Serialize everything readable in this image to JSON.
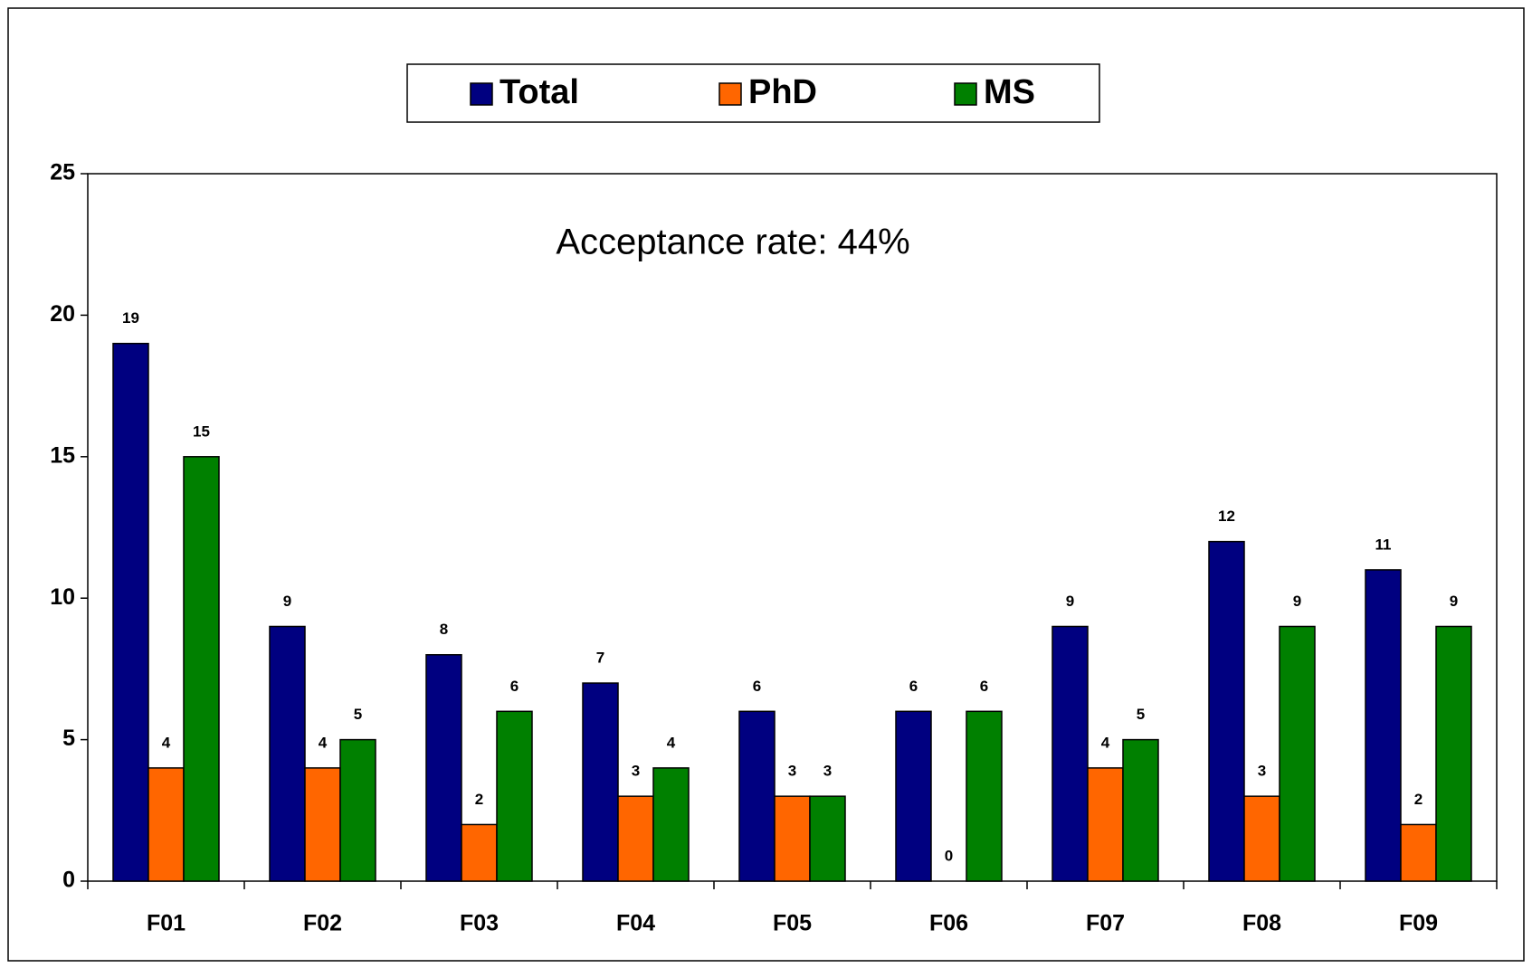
{
  "chart_data": {
    "type": "bar",
    "categories": [
      "F01",
      "F02",
      "F03",
      "F04",
      "F05",
      "F06",
      "F07",
      "F08",
      "F09"
    ],
    "series": [
      {
        "name": "Total",
        "color": "#000080",
        "values": [
          19,
          9,
          8,
          7,
          6,
          6,
          9,
          12,
          11
        ]
      },
      {
        "name": "PhD",
        "color": "#ff6600",
        "values": [
          4,
          4,
          2,
          3,
          3,
          0,
          4,
          3,
          2
        ]
      },
      {
        "name": "MS",
        "color": "#008000",
        "values": [
          15,
          5,
          6,
          4,
          3,
          6,
          5,
          9,
          9
        ]
      }
    ],
    "annotations": [
      "Acceptance rate: 44%"
    ],
    "ylim": [
      0,
      25
    ],
    "yticks": [
      0,
      5,
      10,
      15,
      20,
      25
    ],
    "grid": false,
    "legend": "top"
  }
}
